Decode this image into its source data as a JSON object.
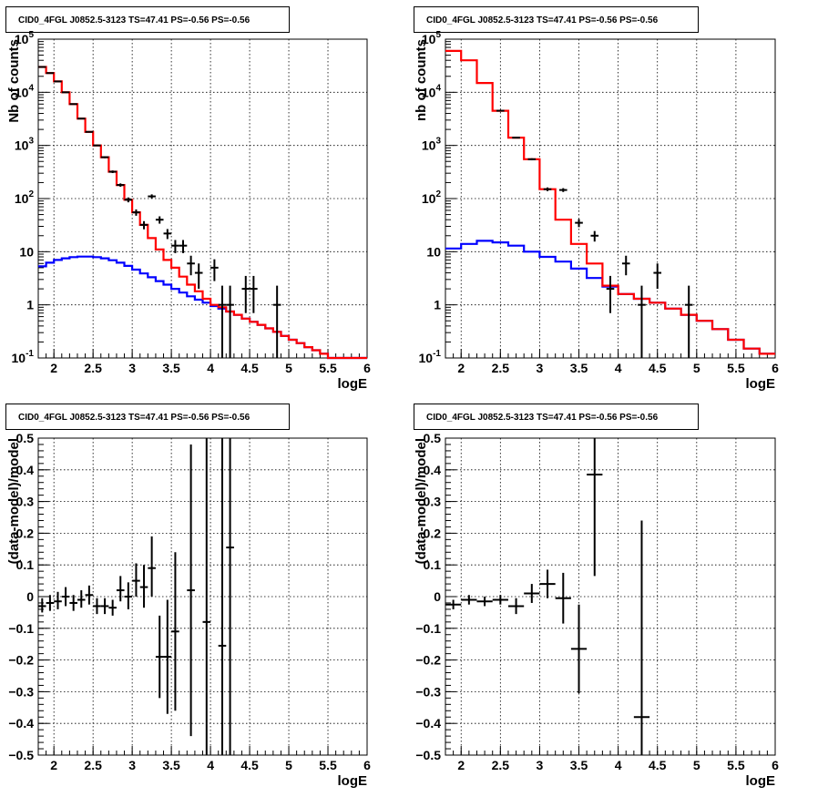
{
  "chart_data": [
    {
      "type": "line",
      "title": "CID0_4FGL J0852.5-3123 TS=47.41 PS=-0.56 PS=-0.56",
      "xlabel": "logE",
      "ylabel": "Nb of counts",
      "xlim": [
        1.8,
        6
      ],
      "ylim": [
        0.1,
        100000
      ],
      "yscale": "log",
      "x_ticks": [
        "2",
        "2.5",
        "3",
        "3.5",
        "4",
        "4.5",
        "5",
        "5.5",
        "6"
      ],
      "y_ticks": [
        "10^-1",
        "1",
        "10",
        "10^2",
        "10^3",
        "10^4",
        "10^5"
      ],
      "grid": true,
      "series": [
        {
          "color": "#0000ff",
          "style": "step",
          "bin_width": 0.1,
          "x": [
            1.85,
            1.95,
            2.05,
            2.15,
            2.25,
            2.35,
            2.45,
            2.55,
            2.65,
            2.75,
            2.85,
            2.95,
            3.05,
            3.15,
            3.25,
            3.35,
            3.45,
            3.55,
            3.65,
            3.75,
            3.85,
            3.95,
            4.05,
            4.15,
            4.25,
            4.35,
            4.45,
            4.55,
            4.65,
            4.75,
            4.85,
            4.95,
            5.05,
            5.15,
            5.25,
            5.35,
            5.45,
            5.55,
            5.65,
            5.75,
            5.85,
            5.95
          ],
          "y": [
            5.3,
            6.2,
            7,
            7.5,
            7.9,
            8.1,
            8.1,
            7.9,
            7.5,
            6.9,
            6.2,
            5.4,
            4.6,
            3.9,
            3.3,
            2.8,
            2.4,
            2,
            1.7,
            1.45,
            1.25,
            1.1,
            0.95,
            0.85,
            0.75,
            0.65,
            0.55,
            0.48,
            0.42,
            0.36,
            0.31,
            0.26,
            0.22,
            0.19,
            0.16,
            0.14,
            0.12,
            0.1,
            0.1,
            0.1,
            0.1,
            0.1
          ]
        },
        {
          "color": "#ff0000",
          "style": "step",
          "bin_width": 0.1,
          "x": [
            1.85,
            1.95,
            2.05,
            2.15,
            2.25,
            2.35,
            2.45,
            2.55,
            2.65,
            2.75,
            2.85,
            2.95,
            3.05,
            3.15,
            3.25,
            3.35,
            3.45,
            3.55,
            3.65,
            3.75,
            3.85,
            3.95,
            4.05,
            4.15,
            4.25,
            4.35,
            4.45,
            4.55,
            4.65,
            4.75,
            4.85,
            4.95,
            5.05,
            5.15,
            5.25,
            5.35,
            5.45,
            5.55,
            5.65,
            5.75,
            5.85,
            5.95
          ],
          "y": [
            30000,
            23000,
            16000,
            10000,
            6000,
            3200,
            1800,
            1000,
            600,
            320,
            180,
            95,
            55,
            32,
            18,
            11,
            7,
            5,
            3.4,
            2.4,
            1.8,
            1.3,
            1,
            0.9,
            0.75,
            0.65,
            0.55,
            0.48,
            0.42,
            0.36,
            0.31,
            0.26,
            0.22,
            0.19,
            0.16,
            0.14,
            0.12,
            0.1,
            0.1,
            0.1,
            0.1,
            0.1
          ]
        },
        {
          "color": "#000000",
          "style": "errorbar",
          "x": [
            1.85,
            1.95,
            2.05,
            2.15,
            2.25,
            2.35,
            2.45,
            2.55,
            2.65,
            2.75,
            2.85,
            2.95,
            3.05,
            3.15,
            3.25,
            3.35,
            3.45,
            3.55,
            3.65,
            3.75,
            3.85,
            4.05,
            4.15,
            4.25,
            4.45,
            4.55,
            4.85
          ],
          "y": [
            30000,
            23000,
            16000,
            10000,
            6000,
            3200,
            1800,
            1000,
            600,
            320,
            180,
            95,
            55,
            32,
            18,
            11,
            7,
            5,
            3.4,
            2.4,
            1.8,
            1.3,
            1,
            0.9,
            0.75,
            0.65,
            0.55
          ],
          "yerr_low": [
            0,
            0,
            0,
            0,
            0,
            0,
            0,
            0,
            0,
            0,
            0,
            0,
            0,
            0,
            0,
            0,
            0,
            0,
            0,
            0,
            0,
            0,
            0,
            0,
            0,
            0,
            0
          ],
          "yerr_high": [
            0,
            0,
            0,
            0,
            0,
            0,
            0,
            0,
            0,
            0,
            0,
            0,
            0,
            0,
            0,
            0,
            0,
            0,
            0,
            0,
            0,
            0,
            0,
            0,
            0,
            0,
            0
          ],
          "points": [
            [
              1.85,
              30000,
              170,
              190
            ],
            [
              1.95,
              23000,
              150,
              160
            ],
            [
              2.05,
              16000,
              130,
              130
            ],
            [
              2.15,
              10000,
              100,
              100
            ],
            [
              2.25,
              6000,
              80,
              80
            ],
            [
              2.35,
              3200,
              57,
              57
            ],
            [
              2.45,
              1800,
              43,
              43
            ],
            [
              2.55,
              1000,
              32,
              32
            ],
            [
              2.65,
              600,
              25,
              25
            ],
            [
              2.75,
              320,
              18,
              18
            ],
            [
              2.85,
              180,
              13,
              13
            ],
            [
              2.95,
              95,
              10,
              10
            ],
            [
              3.05,
              55,
              7.5,
              7.5
            ],
            [
              3.15,
              32,
              5.6,
              5.6
            ],
            [
              3.25,
              110,
              10,
              10
            ],
            [
              3.35,
              40,
              6.3,
              6.3
            ],
            [
              3.45,
              22,
              4.7,
              4.7
            ],
            [
              3.55,
              13,
              3.6,
              3.6
            ],
            [
              3.65,
              13,
              3.6,
              3.6
            ],
            [
              3.75,
              6,
              2.4,
              2.4
            ],
            [
              3.85,
              4,
              2,
              2
            ],
            [
              4.05,
              5,
              2.2,
              2.2
            ],
            [
              4.15,
              1,
              0.9,
              1.3
            ],
            [
              4.25,
              1,
              0.9,
              1.3
            ],
            [
              4.45,
              2,
              1.3,
              1.5
            ],
            [
              4.55,
              2,
              1.3,
              1.5
            ],
            [
              4.85,
              1,
              0.9,
              1.3
            ]
          ]
        }
      ]
    },
    {
      "type": "line",
      "title": "CID0_4FGL J0852.5-3123 TS=47.41 PS=-0.56 PS=-0.56",
      "xlabel": "logE",
      "ylabel": "nb of counts",
      "xlim": [
        1.8,
        6
      ],
      "ylim": [
        0.1,
        100000
      ],
      "yscale": "log",
      "x_ticks": [
        "2",
        "2.5",
        "3",
        "3.5",
        "4",
        "4.5",
        "5",
        "5.5",
        "6"
      ],
      "y_ticks": [
        "10^-1",
        "1",
        "10",
        "10^2",
        "10^3",
        "10^4",
        "10^5"
      ],
      "grid": true,
      "series": [
        {
          "color": "#0000ff",
          "style": "step",
          "bin_width": 0.2,
          "x": [
            1.9,
            2.1,
            2.3,
            2.5,
            2.7,
            2.9,
            3.1,
            3.3,
            3.5,
            3.7,
            3.9,
            4.1,
            4.3,
            4.5,
            4.7,
            4.9,
            5.1,
            5.3,
            5.5,
            5.7,
            5.9
          ],
          "y": [
            11.5,
            14,
            16,
            15,
            13,
            10,
            8,
            6.5,
            4.8,
            3.2,
            2.2,
            1.6,
            1.3,
            1.1,
            0.85,
            0.65,
            0.5,
            0.35,
            0.22,
            0.15,
            0.12
          ]
        },
        {
          "color": "#ff0000",
          "style": "step",
          "bin_width": 0.2,
          "x": [
            1.9,
            2.1,
            2.3,
            2.5,
            2.7,
            2.9,
            3.1,
            3.3,
            3.5,
            3.7,
            3.9,
            4.1,
            4.3,
            4.5,
            4.7,
            4.9,
            5.1,
            5.3,
            5.5,
            5.7,
            5.9
          ],
          "y": [
            60000,
            40000,
            15000,
            4500,
            1400,
            550,
            150,
            40,
            14,
            6,
            2.3,
            1.6,
            1.3,
            1.1,
            0.85,
            0.65,
            0.5,
            0.35,
            0.22,
            0.15,
            0.12
          ]
        },
        {
          "color": "#000000",
          "style": "errorbar",
          "points": [
            [
              2.5,
              4500,
              67,
              67
            ],
            [
              2.7,
              1400,
              37,
              37
            ],
            [
              2.9,
              550,
              23,
              23
            ],
            [
              3.1,
              150,
              12,
              12
            ],
            [
              3.3,
              145,
              12,
              12
            ],
            [
              3.5,
              35,
              6,
              6
            ],
            [
              3.7,
              20,
              4.5,
              4.5
            ],
            [
              3.9,
              2,
              1.3,
              1.5
            ],
            [
              4.1,
              6,
              2.4,
              2.4
            ],
            [
              4.3,
              1,
              0.9,
              1.3
            ],
            [
              4.5,
              4,
              2,
              2
            ],
            [
              4.9,
              1,
              0.9,
              1.3
            ]
          ]
        }
      ]
    },
    {
      "type": "scatter",
      "title": "CID0_4FGL J0852.5-3123 TS=47.41 PS=-0.56 PS=-0.56",
      "xlabel": "logE",
      "ylabel": "(data-model)/model",
      "xlim": [
        1.8,
        6
      ],
      "ylim": [
        -0.5,
        0.5
      ],
      "x_ticks": [
        "2",
        "2.5",
        "3",
        "3.5",
        "4",
        "4.5",
        "5",
        "5.5",
        "6"
      ],
      "y_ticks": [
        "-0.5",
        "-0.4",
        "-0.3",
        "-0.2",
        "-0.1",
        "0",
        "0.1",
        "0.2",
        "0.3",
        "0.4",
        "0.5"
      ],
      "grid": true,
      "points": [
        [
          1.85,
          -0.03,
          0.02,
          0.025
        ],
        [
          1.95,
          -0.02,
          0.025,
          0.025
        ],
        [
          2.05,
          -0.015,
          0.025,
          0.03
        ],
        [
          2.15,
          0,
          0.03,
          0.03
        ],
        [
          2.25,
          -0.02,
          0.025,
          0.025
        ],
        [
          2.35,
          -0.01,
          0.025,
          0.03
        ],
        [
          2.45,
          0.005,
          0.03,
          0.03
        ],
        [
          2.55,
          -0.03,
          0.025,
          0.025
        ],
        [
          2.65,
          -0.03,
          0.025,
          0.025
        ],
        [
          2.75,
          -0.035,
          0.025,
          0.025
        ],
        [
          2.85,
          0.02,
          0.035,
          0.045
        ],
        [
          2.95,
          0,
          0.04,
          0.045
        ],
        [
          3.05,
          0.05,
          0.05,
          0.055
        ],
        [
          3.15,
          0.03,
          0.065,
          0.07
        ],
        [
          3.25,
          0.09,
          0.09,
          0.1
        ],
        [
          3.35,
          -0.19,
          0.13,
          0.13
        ],
        [
          3.45,
          -0.19,
          0.18,
          0.18
        ],
        [
          3.55,
          -0.11,
          0.25,
          0.25
        ],
        [
          3.75,
          0.02,
          0.46,
          0.46
        ],
        [
          3.95,
          -0.08,
          0.6,
          0.6
        ],
        [
          4.15,
          -0.155,
          0.7,
          0.7
        ],
        [
          4.25,
          0.155,
          0.7,
          0.7
        ]
      ]
    },
    {
      "type": "scatter",
      "title": "CID0_4FGL J0852.5-3123 TS=47.41 PS=-0.56 PS=-0.56",
      "xlabel": "logE",
      "ylabel": "(data-model)/model",
      "xlim": [
        1.8,
        6
      ],
      "ylim": [
        -0.5,
        0.5
      ],
      "x_ticks": [
        "2",
        "2.5",
        "3",
        "3.5",
        "4",
        "4.5",
        "5",
        "5.5",
        "6"
      ],
      "y_ticks": [
        "-0.5",
        "-0.4",
        "-0.3",
        "-0.2",
        "-0.1",
        "0",
        "0.1",
        "0.2",
        "0.3",
        "0.4",
        "0.5"
      ],
      "grid": true,
      "points": [
        [
          1.9,
          -0.025,
          0.015,
          0.015
        ],
        [
          2.1,
          -0.01,
          0.015,
          0.015
        ],
        [
          2.3,
          -0.015,
          0.015,
          0.015
        ],
        [
          2.5,
          -0.01,
          0.015,
          0.015
        ],
        [
          2.7,
          -0.03,
          0.025,
          0.025
        ],
        [
          2.9,
          0.01,
          0.03,
          0.03
        ],
        [
          3.1,
          0.04,
          0.045,
          0.045
        ],
        [
          3.3,
          -0.005,
          0.08,
          0.08
        ],
        [
          3.5,
          -0.165,
          0.14,
          0.14
        ],
        [
          3.7,
          0.385,
          0.32,
          0.32
        ],
        [
          4.3,
          -0.38,
          0.62,
          0.62
        ]
      ]
    }
  ]
}
